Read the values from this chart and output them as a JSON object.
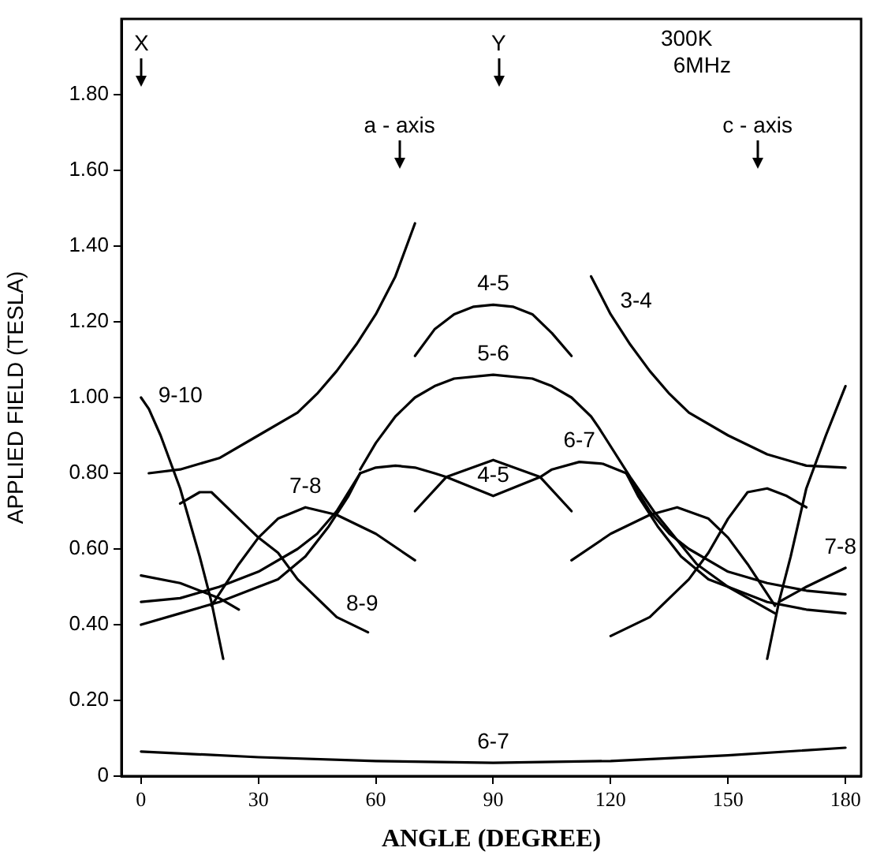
{
  "chart_data": {
    "type": "line",
    "xlabel": "ANGLE (DEGREE)",
    "ylabel": "APPLIED FIELD (TESLA)",
    "xlim": [
      -5,
      184
    ],
    "xticks": [
      0,
      30,
      60,
      90,
      120,
      150,
      180
    ],
    "ylim": [
      0,
      2.0
    ],
    "yticks": [
      {
        "value": 0,
        "label": "0"
      },
      {
        "value": 0.2,
        "label": "0.20"
      },
      {
        "value": 0.4,
        "label": "0.40"
      },
      {
        "value": 0.6,
        "label": "0.60"
      },
      {
        "value": 0.8,
        "label": "0.80"
      },
      {
        "value": 1.0,
        "label": "1.00"
      },
      {
        "value": 1.2,
        "label": "1.20"
      },
      {
        "value": 1.4,
        "label": "1.40"
      },
      {
        "value": 1.6,
        "label": "1.60"
      },
      {
        "value": 1.8,
        "label": "1.80"
      }
    ],
    "legend": false,
    "marker": "none",
    "line_style": "solid",
    "series": [
      {
        "color": "#000000",
        "x": [
          2,
          10,
          20,
          30,
          40,
          45,
          50,
          55,
          60,
          65,
          70,
          110,
          115,
          120,
          125,
          130,
          135,
          140,
          150,
          160,
          170,
          180
        ],
        "values": [
          0.8,
          0.81,
          0.84,
          0.9,
          0.96,
          1.01,
          1.07,
          1.14,
          1.22,
          1.32,
          1.46,
          null,
          1.32,
          1.22,
          1.14,
          1.07,
          1.01,
          0.96,
          0.9,
          0.85,
          0.82,
          0.815
        ]
      },
      {
        "color": "#000000",
        "x": [
          70,
          75,
          80,
          85,
          90,
          95,
          100,
          105,
          110
        ],
        "values": [
          1.11,
          1.18,
          1.22,
          1.24,
          1.245,
          1.24,
          1.22,
          1.17,
          1.11
        ]
      },
      {
        "color": "#000000",
        "x": [
          56,
          60,
          65,
          70,
          75,
          80,
          90,
          100,
          105,
          110,
          115,
          117,
          125,
          131,
          142,
          150,
          162
        ],
        "values": [
          0.81,
          0.88,
          0.95,
          1.0,
          1.03,
          1.05,
          1.06,
          1.05,
          1.03,
          1.0,
          0.95,
          0.92,
          0.79,
          0.7,
          0.56,
          0.5,
          0.43
        ]
      },
      {
        "color": "#000000",
        "x": [
          0,
          2,
          5,
          10,
          15,
          18,
          21
        ],
        "values": [
          1.0,
          0.97,
          0.9,
          0.76,
          0.58,
          0.46,
          0.31
        ]
      },
      {
        "color": "#000000",
        "x": [
          160,
          163,
          166,
          170,
          175,
          180
        ],
        "values": [
          0.31,
          0.46,
          0.58,
          0.76,
          0.9,
          1.03
        ]
      },
      {
        "color": "#000000",
        "x": [
          10,
          15,
          18,
          25,
          30,
          35,
          40,
          50,
          58
        ],
        "values": [
          0.72,
          0.75,
          0.75,
          0.68,
          0.63,
          0.59,
          0.52,
          0.42,
          0.38
        ]
      },
      {
        "color": "#000000",
        "x": [
          120,
          130,
          140,
          145,
          150,
          155,
          160,
          165,
          170
        ],
        "values": [
          0.37,
          0.42,
          0.52,
          0.59,
          0.68,
          0.75,
          0.76,
          0.74,
          0.71
        ]
      },
      {
        "color": "#000000",
        "x": [
          18,
          25,
          30,
          35,
          42,
          50,
          60,
          70
        ],
        "values": [
          0.45,
          0.56,
          0.63,
          0.68,
          0.71,
          0.69,
          0.64,
          0.57
        ]
      },
      {
        "color": "#000000",
        "x": [
          110,
          120,
          130,
          137,
          145,
          150,
          155,
          162
        ],
        "values": [
          0.57,
          0.64,
          0.69,
          0.71,
          0.68,
          0.63,
          0.56,
          0.45
        ]
      },
      {
        "color": "#000000",
        "x": [
          0,
          10,
          20,
          30,
          35,
          42,
          48,
          53,
          56
        ],
        "values": [
          0.4,
          0.43,
          0.46,
          0.5,
          0.52,
          0.58,
          0.66,
          0.74,
          0.8
        ]
      },
      {
        "color": "#000000",
        "x": [
          0,
          10,
          20,
          30,
          40,
          45,
          50,
          56
        ],
        "values": [
          0.46,
          0.47,
          0.5,
          0.54,
          0.6,
          0.64,
          0.7,
          0.8
        ]
      },
      {
        "color": "#000000",
        "x": [
          0,
          10,
          20,
          25
        ],
        "values": [
          0.53,
          0.51,
          0.47,
          0.44
        ]
      },
      {
        "color": "#000000",
        "x": [
          124,
          127,
          132,
          138,
          145,
          150,
          160,
          170,
          180
        ],
        "values": [
          0.8,
          0.74,
          0.66,
          0.58,
          0.52,
          0.5,
          0.46,
          0.44,
          0.43
        ]
      },
      {
        "color": "#000000",
        "x": [
          124,
          130,
          135,
          140,
          150,
          160,
          170,
          180
        ],
        "values": [
          0.8,
          0.7,
          0.64,
          0.6,
          0.54,
          0.51,
          0.49,
          0.48
        ]
      },
      {
        "color": "#000000",
        "x": [
          163,
          170,
          180
        ],
        "values": [
          0.46,
          0.5,
          0.55
        ]
      },
      {
        "color": "#000000",
        "x": [
          70,
          78,
          90,
          102,
          110
        ],
        "values": [
          0.7,
          0.79,
          0.835,
          0.79,
          0.7
        ]
      },
      {
        "color": "#000000",
        "x": [
          56,
          60,
          65,
          70,
          75,
          78,
          90,
          102,
          105,
          112,
          118,
          124
        ],
        "values": [
          0.8,
          0.815,
          0.82,
          0.815,
          0.8,
          0.79,
          0.74,
          0.79,
          0.81,
          0.83,
          0.825,
          0.8
        ]
      },
      {
        "color": "#000000",
        "x": [
          0,
          30,
          60,
          90,
          120,
          150,
          180
        ],
        "values": [
          0.065,
          0.05,
          0.04,
          0.035,
          0.04,
          0.055,
          0.075
        ]
      }
    ],
    "annotations": [
      "300K",
      "6MHz",
      "X",
      "Y",
      "a - axis",
      "c - axis",
      {
        "text": "9-10",
        "x": 2,
        "y": 0.97
      },
      {
        "text": "3-4",
        "x": 120,
        "y": 1.22
      },
      {
        "text": "4-5",
        "x": 90,
        "y": 1.245
      },
      {
        "text": "5-6",
        "x": 90,
        "y": 1.06
      },
      {
        "text": "6-7",
        "x": 112,
        "y": 0.83
      },
      {
        "text": "4-5",
        "x": 90,
        "y": 0.74
      },
      {
        "text": "7-8",
        "x": 42,
        "y": 0.71
      },
      {
        "text": "8-9",
        "x": 50,
        "y": 0.42
      },
      {
        "text": "7-8",
        "x": 180,
        "y": 0.55
      },
      {
        "text": "6-7",
        "x": 90,
        "y": 0.035
      }
    ]
  }
}
